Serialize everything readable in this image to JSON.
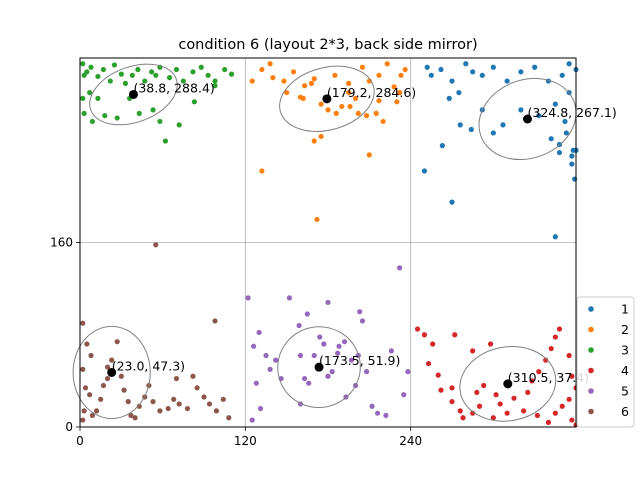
{
  "chart_data": {
    "type": "scatter",
    "title": "condition 6 (layout 2*3, back side mirror)",
    "xlabel": "",
    "ylabel": "",
    "xlim": [
      0,
      360
    ],
    "ylim": [
      0,
      320
    ],
    "xticks": [
      "0",
      "120",
      "240"
    ],
    "yticks": [
      "0",
      "160"
    ],
    "grid": true,
    "legend_position": "right",
    "series": [
      {
        "name": "1",
        "color": "#1f77b4",
        "points": [
          [
            252,
            312
          ],
          [
            255,
            305
          ],
          [
            262,
            310
          ],
          [
            270,
            300
          ],
          [
            275,
            290
          ],
          [
            280,
            315
          ],
          [
            285,
            308
          ],
          [
            292,
            305
          ],
          [
            300,
            312
          ],
          [
            310,
            300
          ],
          [
            320,
            308
          ],
          [
            330,
            312
          ],
          [
            340,
            300
          ],
          [
            350,
            305
          ],
          [
            355,
            315
          ],
          [
            360,
            310
          ],
          [
            268,
            285
          ],
          [
            276,
            262
          ],
          [
            284,
            258
          ],
          [
            292,
            275
          ],
          [
            300,
            255
          ],
          [
            307,
            262
          ],
          [
            320,
            275
          ],
          [
            333,
            270
          ],
          [
            345,
            280
          ],
          [
            355,
            290
          ],
          [
            358,
            240
          ],
          [
            352,
            265
          ],
          [
            348,
            245
          ],
          [
            357,
            235
          ],
          [
            360,
            240
          ],
          [
            342,
            250
          ],
          [
            348,
            238
          ],
          [
            353,
            255
          ],
          [
            357,
            228
          ],
          [
            359,
            215
          ],
          [
            263,
            244
          ],
          [
            250,
            222
          ],
          [
            270,
            195
          ],
          [
            345,
            165
          ]
        ]
      },
      {
        "name": "2",
        "color": "#ff7f0e",
        "points": [
          [
            125,
            300
          ],
          [
            132,
            310
          ],
          [
            138,
            315
          ],
          [
            140,
            303
          ],
          [
            148,
            300
          ],
          [
            155,
            308
          ],
          [
            163,
            296
          ],
          [
            170,
            302
          ],
          [
            175,
            280
          ],
          [
            185,
            305
          ],
          [
            195,
            298
          ],
          [
            205,
            312
          ],
          [
            210,
            300
          ],
          [
            217,
            305
          ],
          [
            223,
            315
          ],
          [
            228,
            295
          ],
          [
            233,
            305
          ],
          [
            236,
            310
          ],
          [
            232,
            290
          ],
          [
            150,
            290
          ],
          [
            160,
            286
          ],
          [
            162,
            285
          ],
          [
            168,
            298
          ],
          [
            180,
            275
          ],
          [
            186,
            272
          ],
          [
            196,
            278
          ],
          [
            202,
            272
          ],
          [
            208,
            270
          ],
          [
            217,
            283
          ],
          [
            170,
            248
          ],
          [
            175,
            252
          ],
          [
            190,
            278
          ],
          [
            215,
            272
          ],
          [
            230,
            282
          ],
          [
            132,
            222
          ],
          [
            172,
            180
          ],
          [
            210,
            236
          ],
          [
            195,
            290
          ],
          [
            200,
            285
          ],
          [
            220,
            265
          ]
        ]
      },
      {
        "name": "3",
        "color": "#2ca02c",
        "points": [
          [
            2,
            315
          ],
          [
            5,
            308
          ],
          [
            8,
            312
          ],
          [
            13,
            304
          ],
          [
            17,
            310
          ],
          [
            22,
            300
          ],
          [
            25,
            314
          ],
          [
            30,
            306
          ],
          [
            33,
            298
          ],
          [
            38,
            305
          ],
          [
            42,
            310
          ],
          [
            47,
            300
          ],
          [
            52,
            308
          ],
          [
            55,
            305
          ],
          [
            58,
            312
          ],
          [
            65,
            303
          ],
          [
            70,
            310
          ],
          [
            75,
            300
          ],
          [
            82,
            308
          ],
          [
            88,
            312
          ],
          [
            93,
            305
          ],
          [
            98,
            300
          ],
          [
            105,
            310
          ],
          [
            110,
            306
          ],
          [
            7,
            290
          ],
          [
            3,
            305
          ],
          [
            3,
            272
          ],
          [
            13,
            285
          ],
          [
            9,
            265
          ],
          [
            18,
            270
          ],
          [
            27,
            268
          ],
          [
            36,
            285
          ],
          [
            43,
            272
          ],
          [
            58,
            265
          ],
          [
            62,
            248
          ],
          [
            53,
            275
          ],
          [
            72,
            262
          ],
          [
            83,
            282
          ],
          [
            98,
            296
          ],
          [
            2,
            285
          ]
        ]
      },
      {
        "name": "4",
        "color": "#d62728",
        "points": [
          [
            245,
            85
          ],
          [
            250,
            80
          ],
          [
            256,
            72
          ],
          [
            253,
            55
          ],
          [
            260,
            45
          ],
          [
            262,
            32
          ],
          [
            270,
            22
          ],
          [
            276,
            14
          ],
          [
            278,
            8
          ],
          [
            285,
            12
          ],
          [
            290,
            18
          ],
          [
            300,
            8
          ],
          [
            305,
            20
          ],
          [
            310,
            12
          ],
          [
            315,
            25
          ],
          [
            325,
            30
          ],
          [
            328,
            40
          ],
          [
            333,
            48
          ],
          [
            338,
            58
          ],
          [
            342,
            68
          ],
          [
            345,
            78
          ],
          [
            348,
            85
          ],
          [
            355,
            62
          ],
          [
            357,
            44
          ],
          [
            360,
            34
          ],
          [
            355,
            24
          ],
          [
            350,
            18
          ],
          [
            345,
            12
          ],
          [
            357,
            6
          ],
          [
            360,
            2
          ],
          [
            340,
            4
          ],
          [
            332,
            10
          ],
          [
            322,
            14
          ],
          [
            302,
            28
          ],
          [
            293,
            36
          ],
          [
            288,
            30
          ],
          [
            270,
            34
          ],
          [
            285,
            66
          ],
          [
            298,
            72
          ],
          [
            272,
            80
          ]
        ]
      },
      {
        "name": "5",
        "color": "#9467bd",
        "points": [
          [
            122,
            112
          ],
          [
            126,
            70
          ],
          [
            130,
            82
          ],
          [
            128,
            38
          ],
          [
            131,
            16
          ],
          [
            135,
            62
          ],
          [
            138,
            50
          ],
          [
            142,
            58
          ],
          [
            146,
            42
          ],
          [
            152,
            112
          ],
          [
            159,
            88
          ],
          [
            160,
            62
          ],
          [
            163,
            42
          ],
          [
            166,
            38
          ],
          [
            170,
            62
          ],
          [
            174,
            78
          ],
          [
            177,
            72
          ],
          [
            180,
            44
          ],
          [
            183,
            48
          ],
          [
            187,
            64
          ],
          [
            192,
            74
          ],
          [
            197,
            58
          ],
          [
            202,
            62
          ],
          [
            205,
            92
          ],
          [
            208,
            48
          ],
          [
            212,
            18
          ],
          [
            216,
            12
          ],
          [
            222,
            10
          ],
          [
            226,
            66
          ],
          [
            232,
            138
          ],
          [
            235,
            28
          ],
          [
            238,
            48
          ],
          [
            180,
            108
          ],
          [
            188,
            70
          ],
          [
            193,
            26
          ],
          [
            200,
            36
          ],
          [
            203,
            100
          ],
          [
            160,
            20
          ],
          [
            165,
            98
          ],
          [
            125,
            6
          ]
        ]
      },
      {
        "name": "6",
        "color": "#8c564b",
        "points": [
          [
            2,
            90
          ],
          [
            5,
            72
          ],
          [
            8,
            62
          ],
          [
            2,
            50
          ],
          [
            4,
            34
          ],
          [
            7,
            28
          ],
          [
            3,
            14
          ],
          [
            2,
            6
          ],
          [
            9,
            10
          ],
          [
            12,
            14
          ],
          [
            15,
            24
          ],
          [
            17,
            36
          ],
          [
            20,
            42
          ],
          [
            23,
            58
          ],
          [
            27,
            74
          ],
          [
            30,
            44
          ],
          [
            32,
            32
          ],
          [
            35,
            22
          ],
          [
            37,
            10
          ],
          [
            40,
            8
          ],
          [
            43,
            18
          ],
          [
            47,
            26
          ],
          [
            50,
            36
          ],
          [
            53,
            22
          ],
          [
            58,
            14
          ],
          [
            64,
            16
          ],
          [
            68,
            24
          ],
          [
            72,
            20
          ],
          [
            78,
            16
          ],
          [
            82,
            44
          ],
          [
            85,
            34
          ],
          [
            90,
            26
          ],
          [
            94,
            20
          ],
          [
            99,
            14
          ],
          [
            104,
            24
          ],
          [
            108,
            8
          ],
          [
            55,
            158
          ],
          [
            98,
            92
          ],
          [
            70,
            42
          ],
          [
            20,
            52
          ]
        ]
      }
    ],
    "markers": [
      {
        "x": 38.8,
        "y": 288.4,
        "label": "(38.8, 288.4)",
        "ellipse": {
          "rx": 33,
          "ry": 24,
          "angle": -20
        }
      },
      {
        "x": 179.2,
        "y": 284.6,
        "label": "(179.2, 284.6)",
        "ellipse": {
          "rx": 35,
          "ry": 27,
          "angle": -15
        }
      },
      {
        "x": 324.8,
        "y": 267.1,
        "label": "(324.8, 267.1)",
        "ellipse": {
          "rx": 36,
          "ry": 34,
          "angle": -20
        }
      },
      {
        "x": 23.0,
        "y": 47.3,
        "label": "(23.0, 47.3)",
        "ellipse": {
          "rx": 28,
          "ry": 40,
          "angle": 0
        }
      },
      {
        "x": 173.5,
        "y": 51.9,
        "label": "(173.5, 51.9)",
        "ellipse": {
          "rx": 30,
          "ry": 35,
          "angle": -10
        }
      },
      {
        "x": 310.5,
        "y": 37.4,
        "label": "(310.5, 37.4)",
        "ellipse": {
          "rx": 35,
          "ry": 32,
          "angle": -10
        }
      }
    ]
  }
}
